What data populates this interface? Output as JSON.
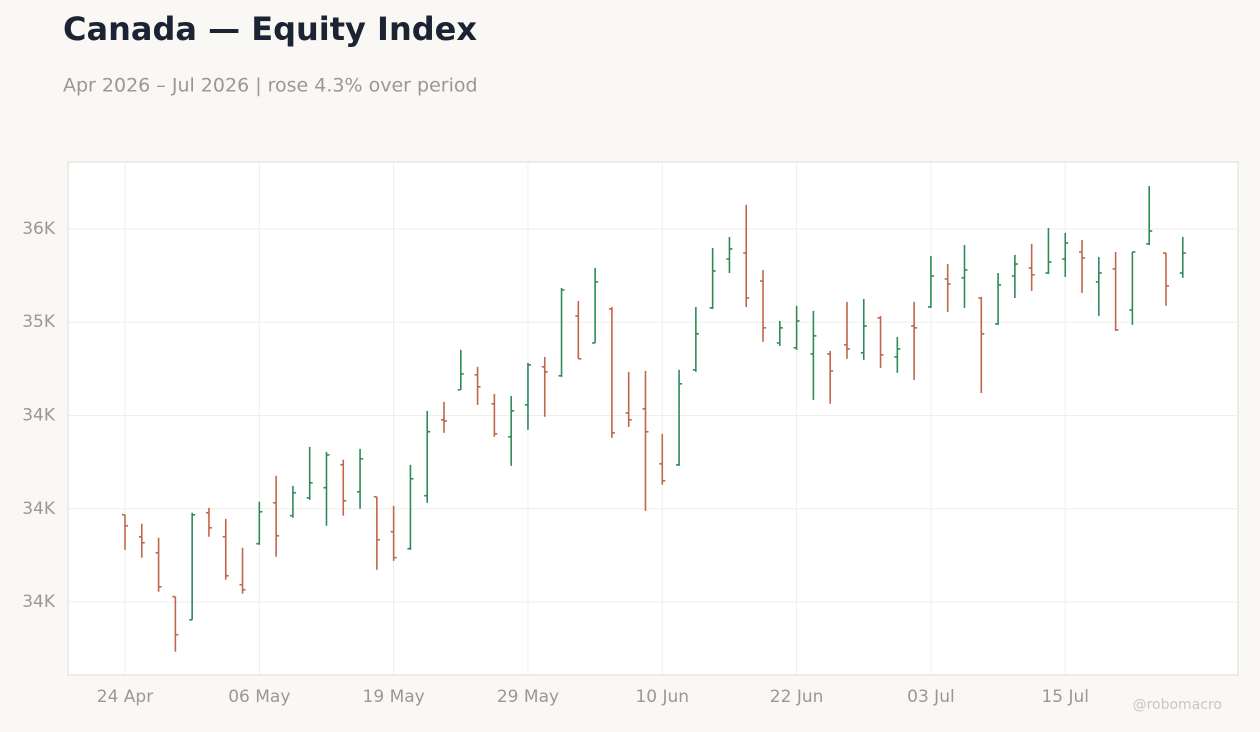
{
  "chart_data": {
    "type": "ohlc",
    "title": "Canada — Equity Index",
    "subtitle": "Apr 2026 – Jul 2026 | rose 4.3% over period",
    "watermark": "@robomacro",
    "categories": [
      "24 Apr",
      null,
      null,
      null,
      null,
      null,
      null,
      null,
      "06 May",
      null,
      null,
      null,
      null,
      null,
      null,
      null,
      "19 May",
      null,
      null,
      null,
      null,
      null,
      null,
      null,
      "29 May",
      null,
      null,
      null,
      null,
      null,
      null,
      null,
      "10 Jun",
      null,
      null,
      null,
      null,
      null,
      null,
      null,
      "22 Jun",
      null,
      null,
      null,
      null,
      null,
      null,
      null,
      "03 Jul",
      null,
      null,
      null,
      null,
      null,
      null,
      null,
      "15 Jul",
      null,
      null,
      null,
      null,
      null,
      null,
      null
    ],
    "open": [
      33968,
      33850,
      33764,
      33529,
      33405,
      33979,
      33850,
      33593,
      33813,
      34032,
      33963,
      34059,
      34113,
      34236,
      34091,
      34064,
      33877,
      33786,
      34070,
      34477,
      34638,
      34718,
      34563,
      34386,
      34557,
      34761,
      34713,
      35034,
      34889,
      35071,
      34514,
      34536,
      34241,
      34236,
      34745,
      35077,
      35339,
      35371,
      35221,
      34889,
      34863,
      34830,
      34830,
      34879,
      34836,
      35023,
      34814,
      34980,
      35082,
      35232,
      35238,
      35130,
      34991,
      35248,
      35291,
      35264,
      35339,
      35377,
      35216,
      35286,
      35066,
      35420,
      35371,
      35264
    ],
    "high": [
      33968,
      33920,
      33845,
      33529,
      33979,
      34005,
      33946,
      33791,
      34038,
      34177,
      34123,
      34332,
      34305,
      34263,
      34321,
      34064,
      34016,
      34236,
      34525,
      34573,
      34852,
      34761,
      34616,
      34605,
      34782,
      34814,
      35184,
      35114,
      35291,
      35082,
      34734,
      34739,
      34402,
      34745,
      35082,
      35398,
      35457,
      35629,
      35280,
      35007,
      35088,
      35061,
      34846,
      35109,
      35125,
      35034,
      34921,
      35109,
      35355,
      35312,
      35414,
      35136,
      35264,
      35361,
      35420,
      35505,
      35479,
      35441,
      35350,
      35377,
      35377,
      35730,
      35371,
      35457
    ],
    "low": [
      33780,
      33738,
      33555,
      33234,
      33405,
      33850,
      33620,
      33545,
      33807,
      33743,
      33952,
      34048,
      33909,
      33963,
      34000,
      33673,
      33721,
      33780,
      34032,
      34407,
      34638,
      34557,
      34386,
      34230,
      34423,
      34493,
      34707,
      34804,
      34889,
      34380,
      34439,
      33989,
      34129,
      34230,
      34734,
      35071,
      35264,
      35082,
      34895,
      34873,
      34852,
      34584,
      34563,
      34804,
      34798,
      34755,
      34729,
      34691,
      35077,
      35055,
      35077,
      34621,
      34986,
      35130,
      35168,
      35259,
      35243,
      35157,
      35034,
      34954,
      34986,
      35414,
      35088,
      35238
    ],
    "close": [
      33909,
      33818,
      33582,
      33325,
      33968,
      33898,
      33641,
      33566,
      33984,
      33855,
      34086,
      34139,
      34289,
      34043,
      34268,
      33834,
      33738,
      34161,
      34413,
      34471,
      34723,
      34654,
      34402,
      34525,
      34771,
      34734,
      35173,
      34804,
      35216,
      34407,
      34477,
      34413,
      34150,
      34670,
      34938,
      35275,
      35393,
      35130,
      34970,
      34970,
      35007,
      34927,
      34739,
      34857,
      34980,
      34825,
      34857,
      34970,
      35248,
      35205,
      35280,
      34938,
      35200,
      35312,
      35254,
      35323,
      35425,
      35345,
      35264,
      34959,
      35377,
      35489,
      35195,
      35371
    ],
    "up_color": "#2e8a58",
    "down_color": "#c0664a",
    "ylim": [
      33109,
      35859
    ],
    "yticks": [
      {
        "value": 33500,
        "label": "34K"
      },
      {
        "value": 34000,
        "label": "34K"
      },
      {
        "value": 34500,
        "label": "34K"
      },
      {
        "value": 35000,
        "label": "35K"
      },
      {
        "value": 35500,
        "label": "36K"
      }
    ],
    "grid": true
  }
}
